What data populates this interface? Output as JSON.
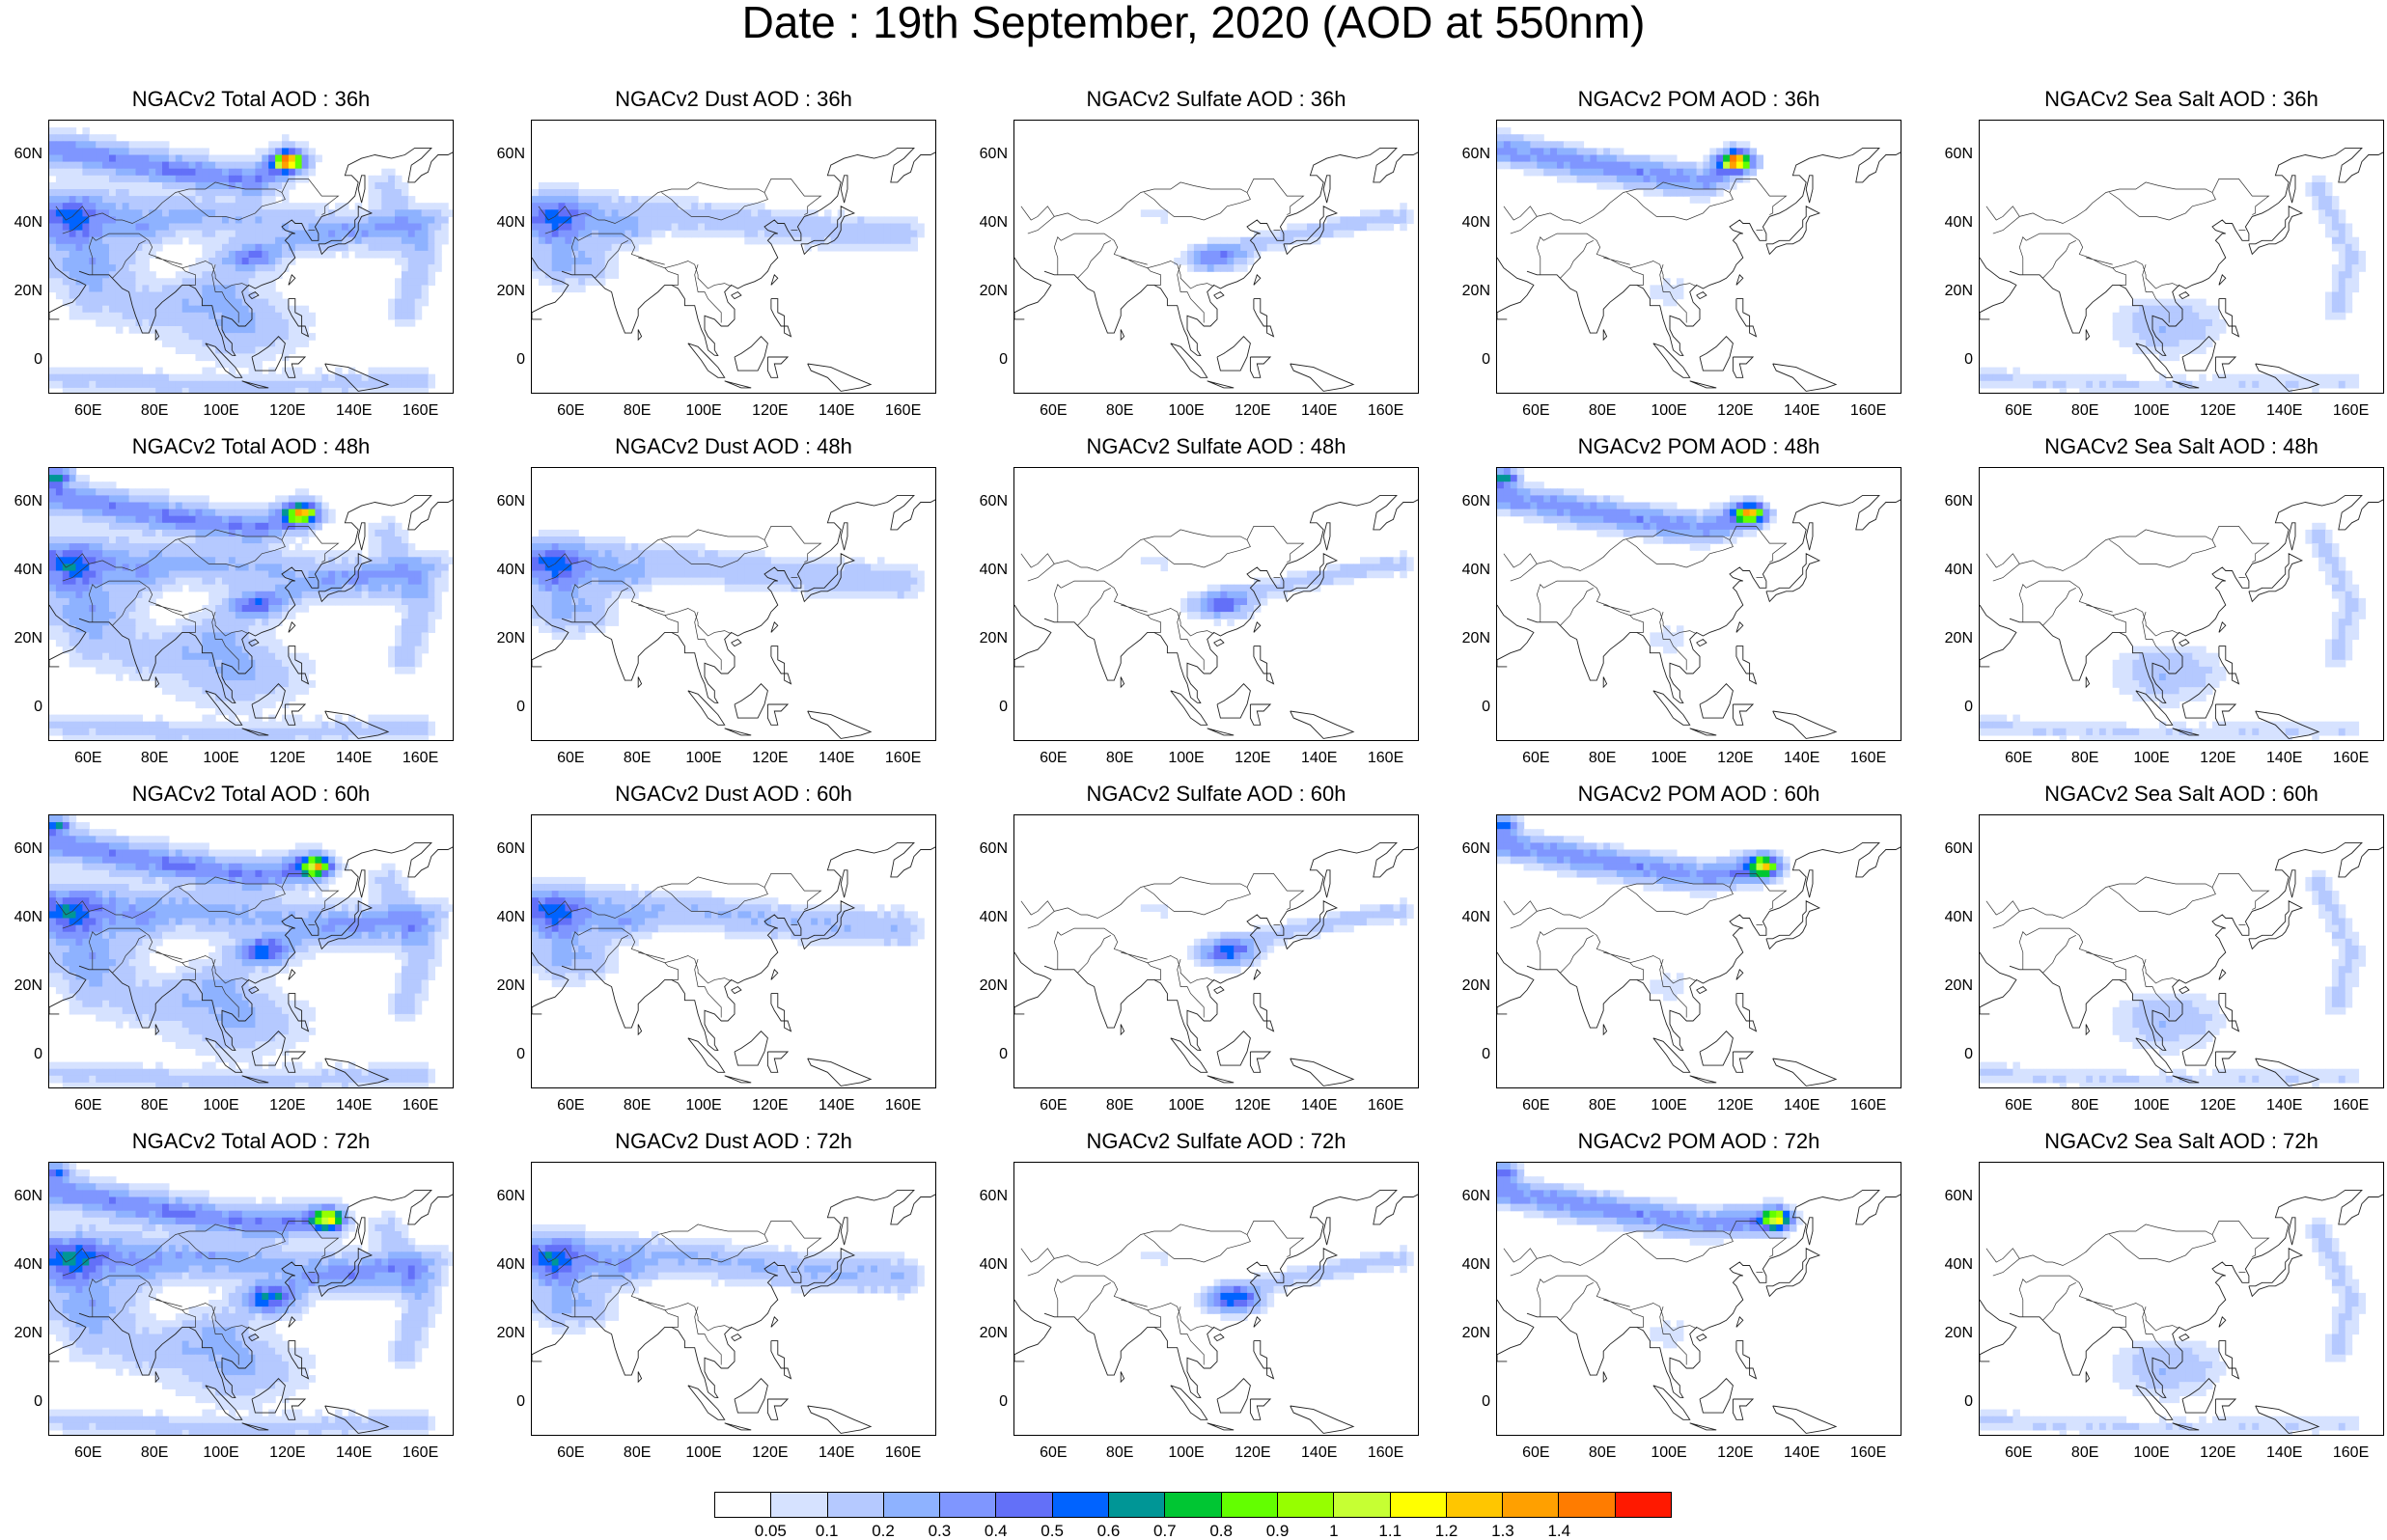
{
  "figure_title": "Date : 19th September, 2020 (AOD at 550nm)",
  "map_axes": {
    "lat_ticks": [
      "60N",
      "40N",
      "20N",
      "0"
    ],
    "lon_ticks": [
      "60E",
      "80E",
      "100E",
      "120E",
      "140E",
      "160E"
    ],
    "lon_range": [
      48,
      170
    ],
    "lat_range": [
      -10,
      70
    ]
  },
  "panels": [
    [
      {
        "title": "NGACv2 Total AOD : 36h",
        "species": "total",
        "hour": 36
      },
      {
        "title": "NGACv2 Dust AOD : 36h",
        "species": "dust",
        "hour": 36
      },
      {
        "title": "NGACv2 Sulfate AOD : 36h",
        "species": "sulfate",
        "hour": 36
      },
      {
        "title": "NGACv2 POM AOD : 36h",
        "species": "pom",
        "hour": 36
      },
      {
        "title": "NGACv2 Sea Salt AOD : 36h",
        "species": "seasalt",
        "hour": 36
      }
    ],
    [
      {
        "title": "NGACv2 Total AOD : 48h",
        "species": "total",
        "hour": 48
      },
      {
        "title": "NGACv2 Dust AOD : 48h",
        "species": "dust",
        "hour": 48
      },
      {
        "title": "NGACv2 Sulfate AOD : 48h",
        "species": "sulfate",
        "hour": 48
      },
      {
        "title": "NGACv2 POM AOD : 48h",
        "species": "pom",
        "hour": 48
      },
      {
        "title": "NGACv2 Sea Salt AOD : 48h",
        "species": "seasalt",
        "hour": 48
      }
    ],
    [
      {
        "title": "NGACv2 Total AOD : 60h",
        "species": "total",
        "hour": 60
      },
      {
        "title": "NGACv2 Dust AOD : 60h",
        "species": "dust",
        "hour": 60
      },
      {
        "title": "NGACv2 Sulfate AOD : 60h",
        "species": "sulfate",
        "hour": 60
      },
      {
        "title": "NGACv2 POM AOD : 60h",
        "species": "pom",
        "hour": 60
      },
      {
        "title": "NGACv2 Sea Salt AOD : 60h",
        "species": "seasalt",
        "hour": 60
      }
    ],
    [
      {
        "title": "NGACv2 Total AOD : 72h",
        "species": "total",
        "hour": 72
      },
      {
        "title": "NGACv2 Dust AOD : 72h",
        "species": "dust",
        "hour": 72
      },
      {
        "title": "NGACv2 Sulfate AOD : 72h",
        "species": "sulfate",
        "hour": 72
      },
      {
        "title": "NGACv2 POM AOD : 72h",
        "species": "pom",
        "hour": 72
      },
      {
        "title": "NGACv2 Sea Salt  AOD : 72h",
        "species": "seasalt",
        "hour": 72
      }
    ]
  ],
  "colorbar": {
    "labels": [
      "0.05",
      "0.1",
      "0.2",
      "0.3",
      "0.4",
      "0.5",
      "0.6",
      "0.7",
      "0.8",
      "0.9",
      "1",
      "1.1",
      "1.2",
      "1.3",
      "1.4"
    ],
    "colors": [
      "#ffffff",
      "#d6e2ff",
      "#b5c9ff",
      "#8eb2ff",
      "#7f96ff",
      "#6370f8",
      "#0063ff",
      "#009696",
      "#00c633",
      "#63ff00",
      "#96ff00",
      "#c6ff33",
      "#ffff00",
      "#ffc600",
      "#ffa000",
      "#ff7c00",
      "#ff1900"
    ]
  }
}
